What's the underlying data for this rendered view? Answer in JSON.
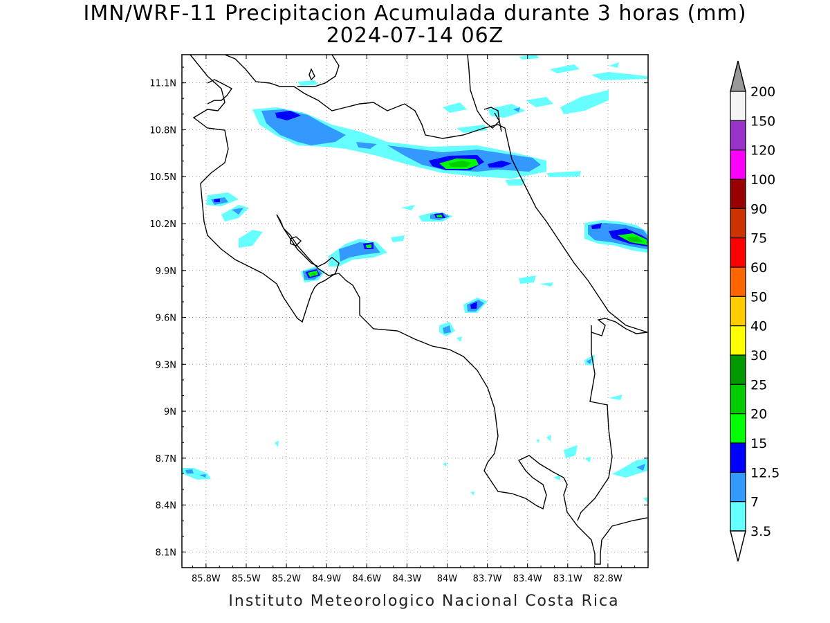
{
  "title": "IMN/WRF-11 Precipitacion Acumulada durante 3 horas (mm)",
  "subtitle": "2024-07-14 06Z",
  "footer": "Instituto Meteorologico Nacional Costa Rica",
  "x_axis": {
    "ticks": [
      "85.8W",
      "85.5W",
      "85.2W",
      "84.9W",
      "84.6W",
      "84.3W",
      "84W",
      "83.7W",
      "83.4W",
      "83.1W",
      "82.8W"
    ],
    "lon_values": [
      -85.8,
      -85.5,
      -85.2,
      -84.9,
      -84.6,
      -84.3,
      -84.0,
      -83.7,
      -83.4,
      -83.1,
      -82.8
    ],
    "range": [
      -85.98,
      -82.5
    ]
  },
  "y_axis": {
    "ticks": [
      "8.1N",
      "8.4N",
      "8.7N",
      "9N",
      "9.3N",
      "9.6N",
      "9.9N",
      "10.2N",
      "10.5N",
      "10.8N",
      "11.1N"
    ],
    "lat_values": [
      8.1,
      8.4,
      8.7,
      9.0,
      9.3,
      9.6,
      9.9,
      10.2,
      10.5,
      10.8,
      11.1
    ],
    "range": [
      8.0,
      11.28
    ]
  },
  "colorbar": {
    "labels": [
      "200",
      "150",
      "120",
      "100",
      "90",
      "75",
      "60",
      "50",
      "40",
      "30",
      "25",
      "20",
      "15",
      "12.5",
      "7",
      "3.5"
    ],
    "colors": [
      "#f4f4f4",
      "#9933cc",
      "#ff00ff",
      "#990000",
      "#cc3300",
      "#ff0000",
      "#ff6600",
      "#ffcc00",
      "#ffff00",
      "#009900",
      "#00cc00",
      "#00ff00",
      "#0000ff",
      "#3399ff",
      "#66ffff"
    ],
    "top_arrow_color": "#999999",
    "bottom_arrow_color": "#ffffff"
  }
}
